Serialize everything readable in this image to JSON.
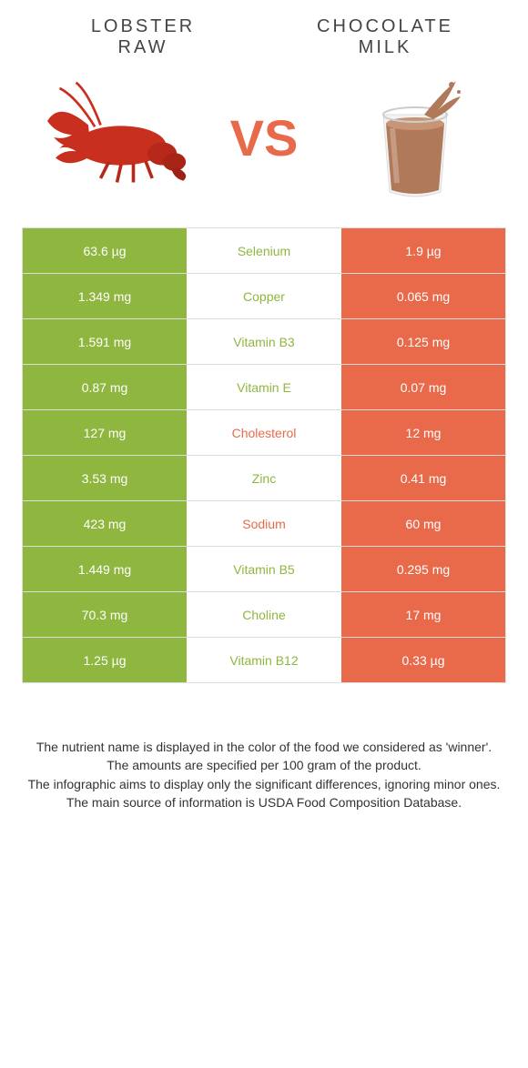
{
  "colors": {
    "left": "#8fb63f",
    "right": "#e86a4a",
    "border": "#dddddd",
    "bg": "#ffffff"
  },
  "food_left": {
    "title_line1": "LOBSTER",
    "title_line2": "RAW"
  },
  "food_right": {
    "title_line1": "CHOCOLATE",
    "title_line2": "MILK"
  },
  "vs_label": "VS",
  "rows": [
    {
      "left": "63.6 µg",
      "label": "Selenium",
      "right": "1.9 µg",
      "winner": "left"
    },
    {
      "left": "1.349 mg",
      "label": "Copper",
      "right": "0.065 mg",
      "winner": "left"
    },
    {
      "left": "1.591 mg",
      "label": "Vitamin B3",
      "right": "0.125 mg",
      "winner": "left"
    },
    {
      "left": "0.87 mg",
      "label": "Vitamin E",
      "right": "0.07 mg",
      "winner": "left"
    },
    {
      "left": "127 mg",
      "label": "Cholesterol",
      "right": "12 mg",
      "winner": "right"
    },
    {
      "left": "3.53 mg",
      "label": "Zinc",
      "right": "0.41 mg",
      "winner": "left"
    },
    {
      "left": "423 mg",
      "label": "Sodium",
      "right": "60 mg",
      "winner": "right"
    },
    {
      "left": "1.449 mg",
      "label": "Vitamin B5",
      "right": "0.295 mg",
      "winner": "left"
    },
    {
      "left": "70.3 mg",
      "label": "Choline",
      "right": "17 mg",
      "winner": "left"
    },
    {
      "left": "1.25 µg",
      "label": "Vitamin B12",
      "right": "0.33 µg",
      "winner": "left"
    }
  ],
  "notes": {
    "l1": "The nutrient name is displayed in the color of the food we considered as 'winner'.",
    "l2": "The amounts are specified per 100 gram of the product.",
    "l3": "The infographic aims to display only the significant differences, ignoring minor ones.",
    "l4": "The main source of information is USDA Food Composition Database."
  }
}
